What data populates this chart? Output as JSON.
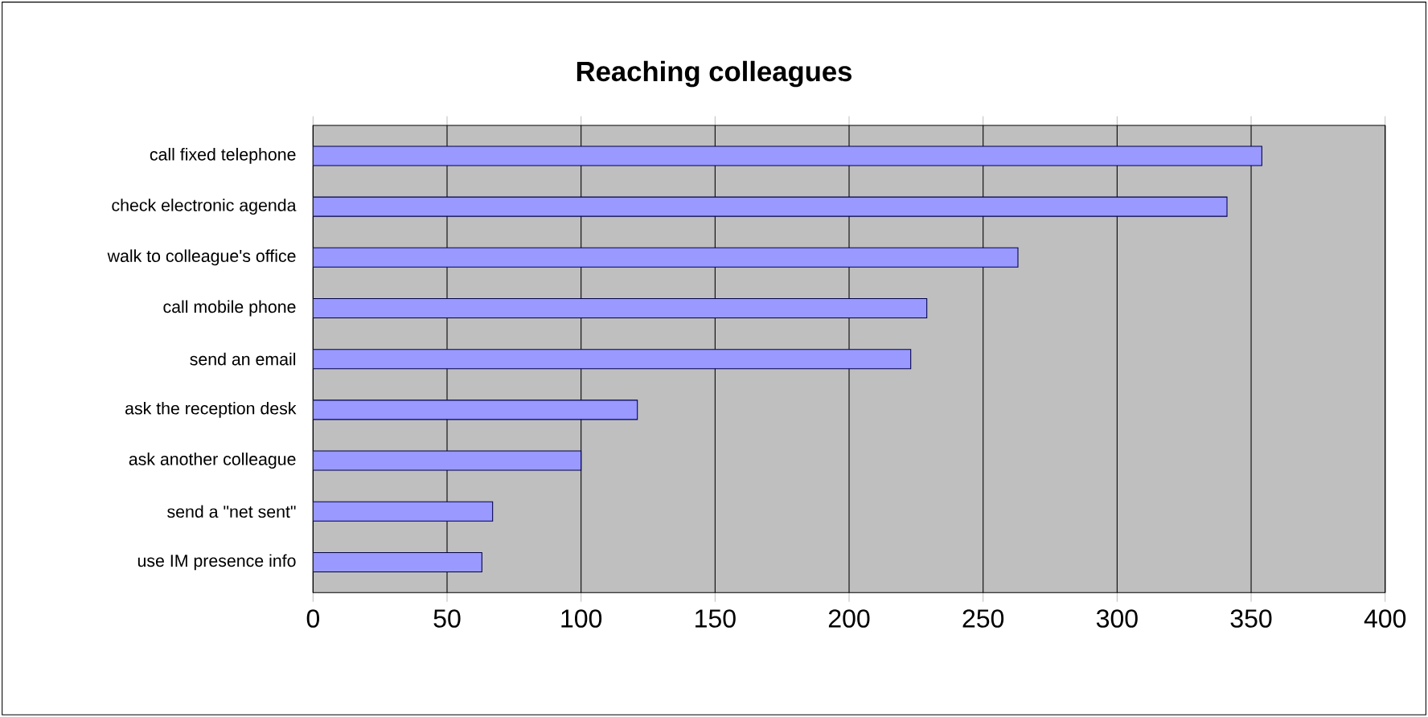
{
  "chart_data": {
    "type": "bar",
    "orientation": "horizontal",
    "title": "Reaching colleagues",
    "categories": [
      "call fixed telephone",
      "check electronic agenda",
      "walk to colleague's office",
      "call mobile phone",
      "send an email",
      "ask the reception desk",
      "ask another colleague",
      "send a \"net sent\"",
      "use IM presence info"
    ],
    "values": [
      354,
      341,
      263,
      229,
      223,
      121,
      100,
      67,
      63
    ],
    "color": "#9999ff",
    "xlim": [
      0,
      400
    ],
    "xticks": [
      0,
      50,
      100,
      150,
      200,
      250,
      300,
      350,
      400
    ],
    "grid": "x"
  }
}
